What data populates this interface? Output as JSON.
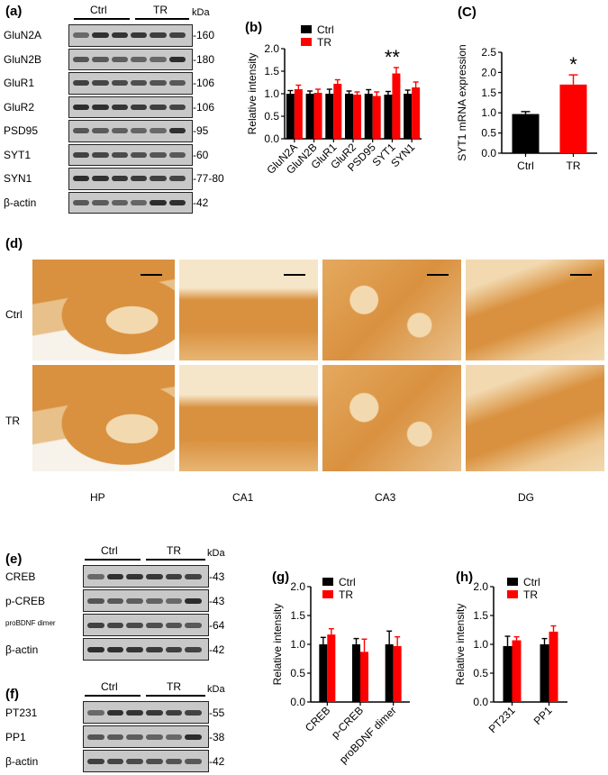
{
  "panels": {
    "a": "(a)",
    "b": "(b)",
    "c": "(C)",
    "d": "(d)",
    "e": "(e)",
    "f": "(f)",
    "g": "(g)",
    "h": "(h)"
  },
  "groups": {
    "ctrl": "Ctrl",
    "tr": "TR"
  },
  "kda": "kDa",
  "blot_a": [
    {
      "name": "GluN2A",
      "kda": "-160"
    },
    {
      "name": "GluN2B",
      "kda": "-180"
    },
    {
      "name": "GluR1",
      "kda": "-106"
    },
    {
      "name": "GluR2",
      "kda": "-106"
    },
    {
      "name": "PSD95",
      "kda": "-95"
    },
    {
      "name": "SYT1",
      "kda": "-60"
    },
    {
      "name": "SYN1",
      "kda": "-77-80"
    },
    {
      "name": "β-actin",
      "kda": "-42"
    }
  ],
  "blot_e": [
    {
      "name": "CREB",
      "kda": "-43"
    },
    {
      "name": "p-CREB",
      "kda": "-43"
    },
    {
      "name": "proBDNF dimer",
      "kda": "-64"
    },
    {
      "name": "β-actin",
      "kda": "-42"
    }
  ],
  "blot_f": [
    {
      "name": "PT231",
      "kda": "-55"
    },
    {
      "name": "PP1",
      "kda": "-38"
    },
    {
      "name": "β-actin",
      "kda": "-42"
    }
  ],
  "histology": {
    "rows": [
      "Ctrl",
      "TR"
    ],
    "columns": [
      "HP",
      "CA1",
      "CA3",
      "DG"
    ]
  },
  "colors": {
    "ctrl": "#000000",
    "tr": "#ff0000",
    "stain": "#d9913f",
    "stain_light": "#f2d9b0"
  },
  "chart_data": [
    {
      "id": "b",
      "type": "bar",
      "ylabel": "Relative intensity",
      "ylim": [
        0,
        2.0
      ],
      "yticks": [
        "0.0",
        "0.5",
        "1.0",
        "1.5",
        "2.0"
      ],
      "categories": [
        "GluN2A",
        "GluN2B",
        "GluR1",
        "GluR2",
        "PSD95",
        "SYT1",
        "SYN1"
      ],
      "series": [
        {
          "name": "Ctrl",
          "values": [
            1.0,
            1.0,
            1.0,
            1.0,
            1.0,
            0.98,
            1.0
          ],
          "errors": [
            0.07,
            0.06,
            0.1,
            0.06,
            0.09,
            0.07,
            0.08
          ]
        },
        {
          "name": "TR",
          "values": [
            1.1,
            1.02,
            1.22,
            0.98,
            0.95,
            1.45,
            1.14
          ],
          "errors": [
            0.09,
            0.08,
            0.09,
            0.06,
            0.09,
            0.13,
            0.12
          ]
        }
      ],
      "annotations": [
        {
          "category": "SYT1",
          "text": "**"
        }
      ],
      "legend": "top-left"
    },
    {
      "id": "c",
      "type": "bar",
      "ylabel": "SYT1 mRNA expression",
      "ylim": [
        0,
        2.5
      ],
      "yticks": [
        "0.0",
        "0.5",
        "1.0",
        "1.5",
        "2.0",
        "2.5"
      ],
      "categories": [
        "Ctrl",
        "TR"
      ],
      "values": [
        0.97,
        1.7
      ],
      "errors": [
        0.06,
        0.24
      ],
      "annotations": [
        {
          "category": "TR",
          "text": "*"
        }
      ]
    },
    {
      "id": "g",
      "type": "bar",
      "ylabel": "Relative intensity",
      "ylim": [
        0,
        2.0
      ],
      "yticks": [
        "0.0",
        "0.5",
        "1.0",
        "1.5",
        "2.0"
      ],
      "categories": [
        "CREB",
        "p-CREB",
        "proBDNF dimer"
      ],
      "series": [
        {
          "name": "Ctrl",
          "values": [
            1.0,
            1.0,
            1.0
          ],
          "errors": [
            0.12,
            0.1,
            0.23
          ]
        },
        {
          "name": "TR",
          "values": [
            1.17,
            0.87,
            0.97
          ],
          "errors": [
            0.1,
            0.22,
            0.16
          ]
        }
      ],
      "legend": "top-left"
    },
    {
      "id": "h",
      "type": "bar",
      "ylabel": "Relative intensity",
      "ylim": [
        0,
        2.0
      ],
      "yticks": [
        "0.0",
        "0.5",
        "1.0",
        "1.5",
        "2.0"
      ],
      "categories": [
        "PT231",
        "PP1"
      ],
      "series": [
        {
          "name": "Ctrl",
          "values": [
            0.97,
            1.0
          ],
          "errors": [
            0.17,
            0.1
          ]
        },
        {
          "name": "TR",
          "values": [
            1.07,
            1.22
          ],
          "errors": [
            0.06,
            0.1
          ]
        }
      ],
      "legend": "top-left"
    }
  ]
}
